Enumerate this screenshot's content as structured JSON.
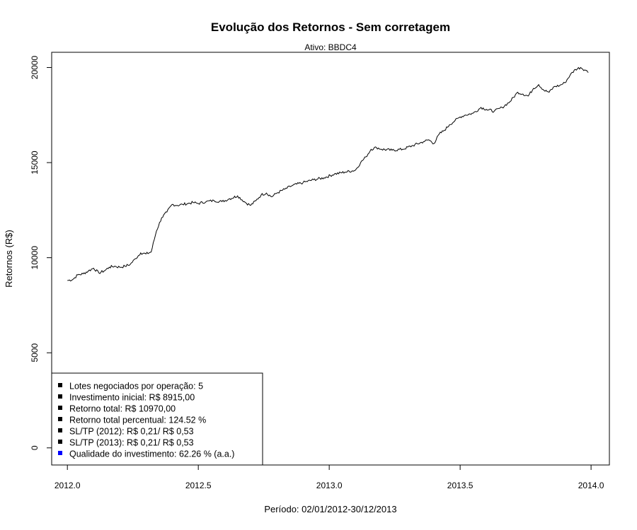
{
  "chart_data": {
    "type": "line",
    "title": "Evolução dos Retornos - Sem corretagem",
    "subtitle": "Ativo: BBDC4",
    "xlabel": "Período: 02/01/2012-30/12/2013",
    "ylabel": "Retornos (R$)",
    "xlim": [
      2011.94,
      2014.07
    ],
    "ylim": [
      -900,
      20800
    ],
    "x_ticks": [
      "2012.0",
      "2012.5",
      "2013.0",
      "2013.5",
      "2014.0"
    ],
    "y_ticks": [
      "0",
      "5000",
      "10000",
      "15000",
      "20000"
    ],
    "grid": false,
    "legend_position": "bottom-left",
    "legend": [
      {
        "label": "Lotes negociados por operação: 5",
        "color": "#000000"
      },
      {
        "label": "Investimento inicial: R$ 8915,00",
        "color": "#000000"
      },
      {
        "label": "Retorno total: R$ 10970,00",
        "color": "#000000"
      },
      {
        "label": "Retorno total percentual: 124.52 %",
        "color": "#000000"
      },
      {
        "label": "SL/TP (2012): R$ 0,21/ R$ 0,53",
        "color": "#000000"
      },
      {
        "label": "SL/TP (2013): R$ 0,21/ R$ 0,53",
        "color": "#000000"
      },
      {
        "label": "Qualidade do investimento: 62.26 % (a.a.)",
        "color": "#0000ff"
      }
    ],
    "series": [
      {
        "color": "#000000",
        "x": [
          2012.0,
          2012.02,
          2012.04,
          2012.06,
          2012.08,
          2012.1,
          2012.12,
          2012.14,
          2012.16,
          2012.18,
          2012.2,
          2012.22,
          2012.24,
          2012.26,
          2012.28,
          2012.3,
          2012.32,
          2012.34,
          2012.36,
          2012.38,
          2012.4,
          2012.42,
          2012.44,
          2012.46,
          2012.48,
          2012.5,
          2012.53,
          2012.56,
          2012.59,
          2012.62,
          2012.65,
          2012.68,
          2012.7,
          2012.72,
          2012.74,
          2012.76,
          2012.78,
          2012.8,
          2012.83,
          2012.86,
          2012.9,
          2012.94,
          2012.98,
          2013.02,
          2013.06,
          2013.1,
          2013.12,
          2013.14,
          2013.16,
          2013.18,
          2013.2,
          2013.24,
          2013.28,
          2013.32,
          2013.36,
          2013.38,
          2013.4,
          2013.42,
          2013.44,
          2013.46,
          2013.48,
          2013.5,
          2013.52,
          2013.55,
          2013.58,
          2013.6,
          2013.63,
          2013.66,
          2013.69,
          2013.72,
          2013.74,
          2013.76,
          2013.78,
          2013.8,
          2013.82,
          2013.84,
          2013.86,
          2013.88,
          2013.9,
          2013.92,
          2013.94,
          2013.96,
          2013.98,
          2013.99
        ],
        "values": [
          8800,
          8850,
          9100,
          9150,
          9300,
          9450,
          9200,
          9300,
          9500,
          9550,
          9500,
          9550,
          9650,
          9950,
          10250,
          10200,
          10300,
          11400,
          12100,
          12400,
          12800,
          12750,
          12800,
          12850,
          12900,
          12850,
          12950,
          13000,
          12950,
          13100,
          13250,
          12900,
          12750,
          13000,
          13300,
          13400,
          13200,
          13400,
          13600,
          13800,
          13950,
          14100,
          14200,
          14400,
          14500,
          14600,
          15000,
          15300,
          15700,
          15800,
          15700,
          15650,
          15700,
          15900,
          16100,
          16200,
          16000,
          16500,
          16700,
          17000,
          17200,
          17400,
          17500,
          17600,
          17900,
          17800,
          17700,
          17900,
          18200,
          18700,
          18600,
          18500,
          18900,
          19100,
          18800,
          18700,
          19000,
          19050,
          19200,
          19600,
          19900,
          20000,
          19850,
          19750
        ]
      }
    ]
  }
}
